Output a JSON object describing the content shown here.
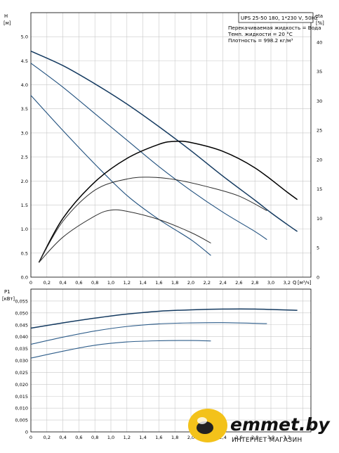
{
  "info": {
    "model": "UPS 25-50 180, 1*230 V, 50Hz",
    "lines": [
      "Перекачиваемая жидкость = Вода",
      "Темп. жидкости = 20 °C",
      "Плотность = 998.2 кг/м³"
    ]
  },
  "logo": {
    "text": "emmet.by",
    "subtext": "ИНТЕРНЕТ МАГАЗИН"
  },
  "chart_data": [
    {
      "type": "line",
      "ylabel": "H",
      "yunit": "[м]",
      "y2label": "eta",
      "y2unit": "[%]",
      "xlabel": "Q",
      "xunit": "[м³/ч]",
      "xlim": [
        0,
        3.5
      ],
      "ylim": [
        0,
        5.5
      ],
      "y2lim": [
        0,
        45
      ],
      "xticks": [
        "0",
        "0,2",
        "0,4",
        "0,6",
        "0,8",
        "1,0",
        "1,2",
        "1,4",
        "1,6",
        "1,8",
        "2,0",
        "2,2",
        "2,4",
        "2,6",
        "2,8",
        "3,0",
        "3,2"
      ],
      "yticks": [
        "0.0",
        "0.5",
        "1.0",
        "1.5",
        "2.0",
        "2.5",
        "3.0",
        "3.5",
        "4.0",
        "4.5",
        "5.0"
      ],
      "y2ticks": [
        "0",
        "5",
        "10",
        "15",
        "20",
        "25",
        "30",
        "35",
        "40"
      ],
      "head_series": [
        {
          "speed": 3,
          "points": [
            [
              0,
              4.7
            ],
            [
              0.4,
              4.4
            ],
            [
              0.8,
              4.02
            ],
            [
              1.2,
              3.6
            ],
            [
              1.6,
              3.13
            ],
            [
              2.0,
              2.63
            ],
            [
              2.4,
              2.1
            ],
            [
              2.8,
              1.6
            ],
            [
              3.0,
              1.34
            ],
            [
              3.2,
              1.1
            ],
            [
              3.33,
              0.95
            ]
          ]
        },
        {
          "speed": 2,
          "points": [
            [
              0,
              4.45
            ],
            [
              0.4,
              3.95
            ],
            [
              0.8,
              3.4
            ],
            [
              1.2,
              2.85
            ],
            [
              1.6,
              2.3
            ],
            [
              2.0,
              1.8
            ],
            [
              2.4,
              1.35
            ],
            [
              2.8,
              0.95
            ],
            [
              2.95,
              0.78
            ]
          ]
        },
        {
          "speed": 1,
          "points": [
            [
              0,
              3.78
            ],
            [
              0.4,
              3.05
            ],
            [
              0.8,
              2.35
            ],
            [
              1.2,
              1.7
            ],
            [
              1.6,
              1.2
            ],
            [
              2.0,
              0.78
            ],
            [
              2.25,
              0.45
            ]
          ]
        }
      ],
      "eta_series": [
        {
          "speed": 3,
          "points": [
            [
              0.1,
              2.5
            ],
            [
              0.4,
              10
            ],
            [
              0.8,
              16.2
            ],
            [
              1.2,
              20.2
            ],
            [
              1.6,
              22.6
            ],
            [
              1.8,
              23.1
            ],
            [
              2.0,
              22.9
            ],
            [
              2.4,
              21.4
            ],
            [
              2.8,
              18.6
            ],
            [
              3.2,
              14.5
            ],
            [
              3.33,
              13.2
            ]
          ]
        },
        {
          "speed": 2,
          "points": [
            [
              0.1,
              2.5
            ],
            [
              0.4,
              9.5
            ],
            [
              0.8,
              14.8
            ],
            [
              1.2,
              16.7
            ],
            [
              1.5,
              17.0
            ],
            [
              1.8,
              16.6
            ],
            [
              2.2,
              15.4
            ],
            [
              2.6,
              13.8
            ],
            [
              2.95,
              11.3
            ]
          ]
        },
        {
          "speed": 1,
          "points": [
            [
              0.1,
              2.5
            ],
            [
              0.4,
              6.8
            ],
            [
              0.8,
              10.4
            ],
            [
              1.0,
              11.4
            ],
            [
              1.2,
              11.2
            ],
            [
              1.6,
              9.8
            ],
            [
              2.0,
              7.6
            ],
            [
              2.25,
              5.8
            ]
          ]
        }
      ]
    },
    {
      "type": "line",
      "ylabel": "P1",
      "yunit": "[кВт]",
      "xlim": [
        0,
        3.5
      ],
      "ylim": [
        0,
        0.06
      ],
      "yticks": [
        "0",
        "0,005",
        "0,010",
        "0,015",
        "0,020",
        "0,025",
        "0,030",
        "0,035",
        "0,040",
        "0,045",
        "0,050",
        "0,055"
      ],
      "xticks": [
        "0",
        "0,2",
        "0,4",
        "0,6",
        "0,8",
        "1,0",
        "1,2",
        "1,4",
        "1,6",
        "1,8",
        "2,0",
        "2,2",
        "2,4",
        "2,6",
        "2,8",
        "3,0",
        "3,2"
      ],
      "series": [
        {
          "speed": 3,
          "points": [
            [
              0,
              0.0436
            ],
            [
              0.4,
              0.0458
            ],
            [
              0.8,
              0.0478
            ],
            [
              1.2,
              0.0495
            ],
            [
              1.6,
              0.0507
            ],
            [
              2.0,
              0.0513
            ],
            [
              2.4,
              0.0516
            ],
            [
              2.8,
              0.0516
            ],
            [
              3.33,
              0.0511
            ]
          ]
        },
        {
          "speed": 2,
          "points": [
            [
              0,
              0.0368
            ],
            [
              0.4,
              0.0398
            ],
            [
              0.8,
              0.0424
            ],
            [
              1.2,
              0.0443
            ],
            [
              1.6,
              0.0454
            ],
            [
              2.0,
              0.0458
            ],
            [
              2.4,
              0.0459
            ],
            [
              2.95,
              0.0455
            ]
          ]
        },
        {
          "speed": 1,
          "points": [
            [
              0,
              0.031
            ],
            [
              0.4,
              0.0339
            ],
            [
              0.8,
              0.0364
            ],
            [
              1.2,
              0.0378
            ],
            [
              1.6,
              0.0383
            ],
            [
              2.0,
              0.0384
            ],
            [
              2.25,
              0.0382
            ]
          ]
        }
      ]
    }
  ],
  "colors": {
    "head": "#20507e",
    "head_dark": "#143a60",
    "eta_top": "#000000",
    "eta_other": "#2e2e2e",
    "power": "#2e5d8a",
    "logo_yellow": "#f3c21a",
    "grid": "#c8c8c8"
  }
}
